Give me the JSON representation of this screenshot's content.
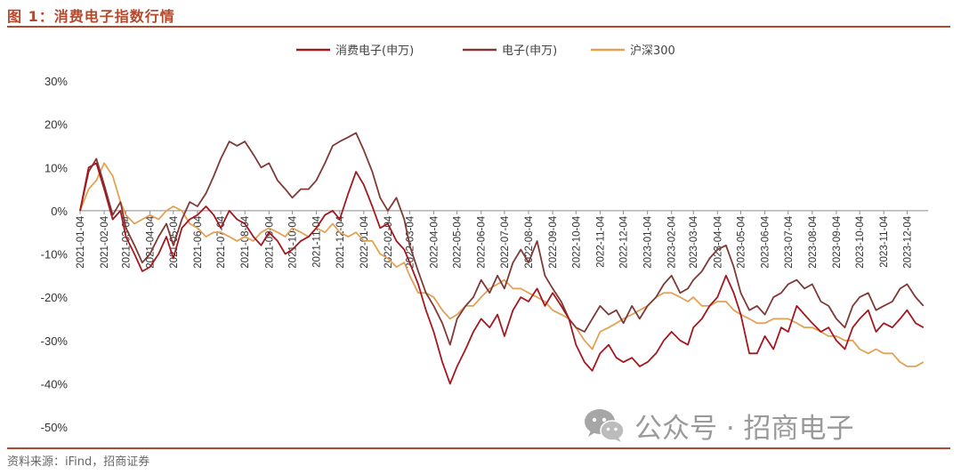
{
  "header": {
    "title": "图 1：消费电子指数行情"
  },
  "footer": {
    "source": "资料来源：iFind，招商证券"
  },
  "watermark": {
    "text": "公众号 · 招商电子",
    "icon": "wechat-icon"
  },
  "colors": {
    "accent": "#b3482c",
    "consumer": "#a3181f",
    "electronics": "#7f3a36",
    "hs300": "#e2a255"
  },
  "chart_data": {
    "type": "line",
    "title": "",
    "xlabel": "",
    "ylabel": "",
    "ylim": [
      -0.5,
      0.3
    ],
    "yticks": [
      0.3,
      0.2,
      0.1,
      0.0,
      -0.1,
      -0.2,
      -0.3,
      -0.4,
      -0.5
    ],
    "ytick_labels": [
      "30%",
      "20%",
      "10%",
      "0%",
      "-10%",
      "-20%",
      "-30%",
      "-40%",
      "-50%"
    ],
    "x_ticks": [
      "2021-01-04",
      "2021-02-04",
      "2021-03-04",
      "2021-04-04",
      "2021-05-04",
      "2021-06-04",
      "2021-07-04",
      "2021-08-04",
      "2021-09-04",
      "2021-10-04",
      "2021-11-04",
      "2021-12-04",
      "2022-01-04",
      "2022-02-04",
      "2022-03-04",
      "2022-04-04",
      "2022-05-04",
      "2022-06-04",
      "2022-07-04",
      "2022-08-04",
      "2022-09-04",
      "2022-10-04",
      "2022-11-04",
      "2022-12-04",
      "2023-01-04",
      "2023-02-04",
      "2023-03-04",
      "2023-04-04",
      "2023-05-04",
      "2023-06-04",
      "2023-07-04",
      "2023-08-04",
      "2023-09-04",
      "2023-10-04",
      "2023-11-04",
      "2023-12-04"
    ],
    "legend_position": "top-center",
    "grid": false,
    "series": [
      {
        "name": "消费电子(申万)",
        "color": "#a3181f",
        "x": [
          "2021-01-04",
          "2021-01-15",
          "2021-01-25",
          "2021-02-04",
          "2021-02-15",
          "2021-02-25",
          "2021-03-04",
          "2021-03-15",
          "2021-03-25",
          "2021-04-04",
          "2021-04-15",
          "2021-04-25",
          "2021-05-04",
          "2021-05-15",
          "2021-05-25",
          "2021-06-04",
          "2021-06-15",
          "2021-06-25",
          "2021-07-04",
          "2021-07-15",
          "2021-07-25",
          "2021-08-04",
          "2021-08-15",
          "2021-08-25",
          "2021-09-04",
          "2021-09-15",
          "2021-09-25",
          "2021-10-04",
          "2021-10-15",
          "2021-10-25",
          "2021-11-04",
          "2021-11-15",
          "2021-11-25",
          "2021-12-04",
          "2021-12-15",
          "2021-12-25",
          "2022-01-04",
          "2022-01-15",
          "2022-01-25",
          "2022-02-04",
          "2022-02-15",
          "2022-02-25",
          "2022-03-04",
          "2022-03-15",
          "2022-03-25",
          "2022-04-04",
          "2022-04-15",
          "2022-04-25",
          "2022-05-04",
          "2022-05-15",
          "2022-05-25",
          "2022-06-04",
          "2022-06-15",
          "2022-06-25",
          "2022-07-04",
          "2022-07-15",
          "2022-07-25",
          "2022-08-04",
          "2022-08-15",
          "2022-08-25",
          "2022-09-04",
          "2022-09-15",
          "2022-09-25",
          "2022-10-04",
          "2022-10-15",
          "2022-10-25",
          "2022-11-04",
          "2022-11-15",
          "2022-11-25",
          "2022-12-04",
          "2022-12-15",
          "2022-12-25",
          "2023-01-04",
          "2023-01-15",
          "2023-01-25",
          "2023-02-04",
          "2023-02-15",
          "2023-02-25",
          "2023-03-04",
          "2023-03-15",
          "2023-03-25",
          "2023-04-04",
          "2023-04-15",
          "2023-04-25",
          "2023-05-04",
          "2023-05-15",
          "2023-05-25",
          "2023-06-04",
          "2023-06-15",
          "2023-06-25",
          "2023-07-04",
          "2023-07-15",
          "2023-07-25",
          "2023-08-04",
          "2023-08-15",
          "2023-08-25",
          "2023-09-04",
          "2023-09-15",
          "2023-09-25",
          "2023-10-04",
          "2023-10-15",
          "2023-10-25",
          "2023-11-04",
          "2023-11-15",
          "2023-11-25",
          "2023-12-04",
          "2023-12-15",
          "2023-12-25"
        ],
        "y": [
          0.0,
          0.1,
          0.11,
          0.05,
          -0.02,
          0.0,
          -0.06,
          -0.1,
          -0.14,
          -0.13,
          -0.1,
          -0.06,
          -0.11,
          -0.04,
          -0.02,
          -0.01,
          0.01,
          -0.01,
          -0.04,
          0.0,
          -0.02,
          -0.03,
          -0.06,
          -0.08,
          -0.05,
          -0.07,
          -0.1,
          -0.09,
          -0.07,
          -0.06,
          -0.04,
          -0.01,
          0.0,
          -0.02,
          0.04,
          0.09,
          0.06,
          0.01,
          -0.04,
          -0.03,
          -0.07,
          -0.09,
          -0.12,
          -0.17,
          -0.23,
          -0.28,
          -0.35,
          -0.4,
          -0.36,
          -0.32,
          -0.28,
          -0.25,
          -0.27,
          -0.24,
          -0.29,
          -0.23,
          -0.2,
          -0.21,
          -0.18,
          -0.22,
          -0.19,
          -0.22,
          -0.25,
          -0.31,
          -0.35,
          -0.37,
          -0.33,
          -0.31,
          -0.34,
          -0.35,
          -0.34,
          -0.36,
          -0.35,
          -0.33,
          -0.3,
          -0.28,
          -0.3,
          -0.31,
          -0.27,
          -0.25,
          -0.22,
          -0.2,
          -0.15,
          -0.19,
          -0.24,
          -0.33,
          -0.33,
          -0.29,
          -0.32,
          -0.27,
          -0.28,
          -0.22,
          -0.24,
          -0.26,
          -0.28,
          -0.27,
          -0.3,
          -0.32,
          -0.27,
          -0.25,
          -0.23,
          -0.28,
          -0.26,
          -0.27,
          -0.25,
          -0.23,
          -0.26,
          -0.27
        ]
      },
      {
        "name": "电子(申万)",
        "color": "#7f3a36",
        "x": [
          "2021-01-04",
          "2021-01-15",
          "2021-01-25",
          "2021-02-04",
          "2021-02-15",
          "2021-02-25",
          "2021-03-04",
          "2021-03-15",
          "2021-03-25",
          "2021-04-04",
          "2021-04-15",
          "2021-04-25",
          "2021-05-04",
          "2021-05-15",
          "2021-05-25",
          "2021-06-04",
          "2021-06-15",
          "2021-06-25",
          "2021-07-04",
          "2021-07-15",
          "2021-07-25",
          "2021-08-04",
          "2021-08-15",
          "2021-08-25",
          "2021-09-04",
          "2021-09-15",
          "2021-09-25",
          "2021-10-04",
          "2021-10-15",
          "2021-10-25",
          "2021-11-04",
          "2021-11-15",
          "2021-11-25",
          "2021-12-04",
          "2021-12-15",
          "2021-12-25",
          "2022-01-04",
          "2022-01-15",
          "2022-01-25",
          "2022-02-04",
          "2022-02-15",
          "2022-02-25",
          "2022-03-04",
          "2022-03-15",
          "2022-03-25",
          "2022-04-04",
          "2022-04-15",
          "2022-04-25",
          "2022-05-04",
          "2022-05-15",
          "2022-05-25",
          "2022-06-04",
          "2022-06-15",
          "2022-06-25",
          "2022-07-04",
          "2022-07-15",
          "2022-07-25",
          "2022-08-04",
          "2022-08-15",
          "2022-08-25",
          "2022-09-04",
          "2022-09-15",
          "2022-09-25",
          "2022-10-04",
          "2022-10-15",
          "2022-10-25",
          "2022-11-04",
          "2022-11-15",
          "2022-11-25",
          "2022-12-04",
          "2022-12-15",
          "2022-12-25",
          "2023-01-04",
          "2023-01-15",
          "2023-01-25",
          "2023-02-04",
          "2023-02-15",
          "2023-02-25",
          "2023-03-04",
          "2023-03-15",
          "2023-03-25",
          "2023-04-04",
          "2023-04-15",
          "2023-04-25",
          "2023-05-04",
          "2023-05-15",
          "2023-05-25",
          "2023-06-04",
          "2023-06-15",
          "2023-06-25",
          "2023-07-04",
          "2023-07-15",
          "2023-07-25",
          "2023-08-04",
          "2023-08-15",
          "2023-08-25",
          "2023-09-04",
          "2023-09-15",
          "2023-09-25",
          "2023-10-04",
          "2023-10-15",
          "2023-10-25",
          "2023-11-04",
          "2023-11-15",
          "2023-11-25",
          "2023-12-04",
          "2023-12-15",
          "2023-12-25"
        ],
        "y": [
          0.0,
          0.09,
          0.12,
          0.06,
          -0.01,
          0.02,
          -0.04,
          -0.08,
          -0.12,
          -0.1,
          -0.06,
          -0.03,
          -0.08,
          -0.02,
          0.02,
          0.01,
          0.04,
          0.08,
          0.12,
          0.16,
          0.15,
          0.16,
          0.13,
          0.1,
          0.11,
          0.07,
          0.05,
          0.03,
          0.05,
          0.05,
          0.07,
          0.11,
          0.15,
          0.16,
          0.17,
          0.18,
          0.14,
          0.09,
          0.03,
          0.0,
          0.03,
          -0.02,
          -0.08,
          -0.14,
          -0.19,
          -0.22,
          -0.26,
          -0.31,
          -0.25,
          -0.22,
          -0.2,
          -0.16,
          -0.19,
          -0.15,
          -0.18,
          -0.12,
          -0.09,
          -0.12,
          -0.07,
          -0.15,
          -0.18,
          -0.21,
          -0.25,
          -0.27,
          -0.28,
          -0.25,
          -0.22,
          -0.24,
          -0.23,
          -0.26,
          -0.22,
          -0.25,
          -0.22,
          -0.2,
          -0.17,
          -0.15,
          -0.19,
          -0.18,
          -0.16,
          -0.14,
          -0.11,
          -0.09,
          -0.08,
          -0.13,
          -0.19,
          -0.23,
          -0.22,
          -0.24,
          -0.2,
          -0.19,
          -0.17,
          -0.16,
          -0.18,
          -0.17,
          -0.21,
          -0.22,
          -0.25,
          -0.27,
          -0.22,
          -0.2,
          -0.19,
          -0.23,
          -0.22,
          -0.21,
          -0.18,
          -0.17,
          -0.2,
          -0.22
        ]
      },
      {
        "name": "沪深300",
        "color": "#e2a255",
        "x": [
          "2021-01-04",
          "2021-01-15",
          "2021-01-25",
          "2021-02-04",
          "2021-02-15",
          "2021-02-25",
          "2021-03-04",
          "2021-03-15",
          "2021-03-25",
          "2021-04-04",
          "2021-04-15",
          "2021-04-25",
          "2021-05-04",
          "2021-05-15",
          "2021-05-25",
          "2021-06-04",
          "2021-06-15",
          "2021-06-25",
          "2021-07-04",
          "2021-07-15",
          "2021-07-25",
          "2021-08-04",
          "2021-08-15",
          "2021-08-25",
          "2021-09-04",
          "2021-09-15",
          "2021-09-25",
          "2021-10-04",
          "2021-10-15",
          "2021-10-25",
          "2021-11-04",
          "2021-11-15",
          "2021-11-25",
          "2021-12-04",
          "2021-12-15",
          "2021-12-25",
          "2022-01-04",
          "2022-01-15",
          "2022-01-25",
          "2022-02-04",
          "2022-02-15",
          "2022-02-25",
          "2022-03-04",
          "2022-03-15",
          "2022-03-25",
          "2022-04-04",
          "2022-04-15",
          "2022-04-25",
          "2022-05-04",
          "2022-05-15",
          "2022-05-25",
          "2022-06-04",
          "2022-06-15",
          "2022-06-25",
          "2022-07-04",
          "2022-07-15",
          "2022-07-25",
          "2022-08-04",
          "2022-08-15",
          "2022-08-25",
          "2022-09-04",
          "2022-09-15",
          "2022-09-25",
          "2022-10-04",
          "2022-10-15",
          "2022-10-25",
          "2022-11-04",
          "2022-11-15",
          "2022-11-25",
          "2022-12-04",
          "2022-12-15",
          "2022-12-25",
          "2023-01-04",
          "2023-01-15",
          "2023-01-25",
          "2023-02-04",
          "2023-02-15",
          "2023-02-25",
          "2023-03-04",
          "2023-03-15",
          "2023-03-25",
          "2023-04-04",
          "2023-04-15",
          "2023-04-25",
          "2023-05-04",
          "2023-05-15",
          "2023-05-25",
          "2023-06-04",
          "2023-06-15",
          "2023-06-25",
          "2023-07-04",
          "2023-07-15",
          "2023-07-25",
          "2023-08-04",
          "2023-08-15",
          "2023-08-25",
          "2023-09-04",
          "2023-09-15",
          "2023-09-25",
          "2023-10-04",
          "2023-10-15",
          "2023-10-25",
          "2023-11-04",
          "2023-11-15",
          "2023-11-25",
          "2023-12-04",
          "2023-12-15",
          "2023-12-25"
        ],
        "y": [
          0.0,
          0.05,
          0.07,
          0.11,
          0.08,
          0.02,
          -0.01,
          -0.03,
          -0.02,
          -0.01,
          -0.02,
          0.0,
          0.01,
          0.0,
          -0.03,
          -0.04,
          -0.06,
          -0.05,
          -0.05,
          -0.06,
          -0.07,
          -0.06,
          -0.07,
          -0.05,
          -0.04,
          -0.05,
          -0.06,
          -0.04,
          -0.05,
          -0.06,
          -0.04,
          -0.05,
          -0.03,
          -0.05,
          -0.06,
          -0.05,
          -0.07,
          -0.07,
          -0.1,
          -0.11,
          -0.13,
          -0.12,
          -0.15,
          -0.19,
          -0.19,
          -0.2,
          -0.23,
          -0.25,
          -0.24,
          -0.22,
          -0.22,
          -0.2,
          -0.18,
          -0.17,
          -0.16,
          -0.18,
          -0.18,
          -0.19,
          -0.2,
          -0.21,
          -0.23,
          -0.24,
          -0.25,
          -0.27,
          -0.3,
          -0.32,
          -0.28,
          -0.27,
          -0.26,
          -0.25,
          -0.24,
          -0.23,
          -0.22,
          -0.2,
          -0.19,
          -0.19,
          -0.2,
          -0.21,
          -0.2,
          -0.22,
          -0.22,
          -0.21,
          -0.21,
          -0.23,
          -0.24,
          -0.25,
          -0.26,
          -0.26,
          -0.25,
          -0.25,
          -0.25,
          -0.26,
          -0.27,
          -0.27,
          -0.28,
          -0.29,
          -0.29,
          -0.3,
          -0.3,
          -0.32,
          -0.33,
          -0.32,
          -0.33,
          -0.33,
          -0.35,
          -0.36,
          -0.36,
          -0.35
        ]
      }
    ]
  }
}
